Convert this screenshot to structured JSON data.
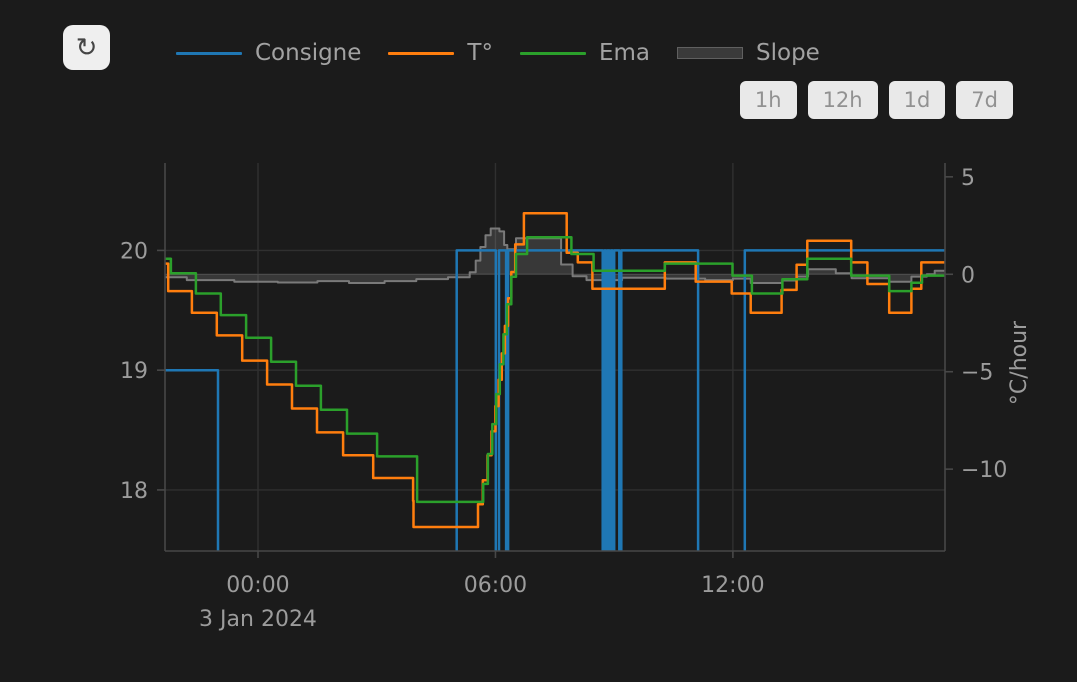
{
  "header": {
    "refresh_icon": "↻"
  },
  "legend": {
    "items": [
      {
        "label": "Consigne",
        "color": "#1f77b4",
        "swatch": "line"
      },
      {
        "label": "T°",
        "color": "#ff7e0e",
        "swatch": "line"
      },
      {
        "label": "Ema",
        "color": "#2ba02b",
        "swatch": "line"
      },
      {
        "label": "Slope",
        "color": "#3a3a3a",
        "border": "#606060",
        "swatch": "fill"
      }
    ]
  },
  "range_buttons": [
    {
      "label": "1h"
    },
    {
      "label": "12h"
    },
    {
      "label": "1d"
    },
    {
      "label": "7d"
    }
  ],
  "chart_data": {
    "type": "line",
    "title": "",
    "grid": true,
    "legend_position": "top",
    "x_axis": {
      "date_label": "3 Jan 2024",
      "range_hours": [
        -2.35,
        17.36
      ],
      "ticks": [
        {
          "t": 0,
          "label": "00:00"
        },
        {
          "t": 6,
          "label": "06:00"
        },
        {
          "t": 12,
          "label": "12:00"
        }
      ]
    },
    "y_axis_left": {
      "title": "",
      "ticks": [
        20,
        19,
        18
      ],
      "range": [
        17.49,
        20.73
      ]
    },
    "y_axis_right": {
      "title": "°C/hour",
      "ticks": [
        5,
        0,
        -5,
        -10
      ],
      "range": [
        -14.2,
        5.71
      ],
      "zeroline": 0
    },
    "series": [
      {
        "name": "Consigne",
        "color": "#1f77b4",
        "yaxis": "left",
        "line_shape": "step",
        "width": 2.5,
        "t_end": 17.36,
        "points": [
          [
            -2.35,
            19.0
          ],
          [
            -1.01,
            17.2
          ],
          [
            5.02,
            20.0
          ],
          [
            6.01,
            17.2
          ],
          [
            6.09,
            20.0
          ],
          [
            6.27,
            17.2
          ],
          [
            6.32,
            20.0
          ],
          [
            8.71,
            17.2
          ],
          [
            8.75,
            20.0
          ],
          [
            8.79,
            17.2
          ],
          [
            8.83,
            20.0
          ],
          [
            8.88,
            17.2
          ],
          [
            8.92,
            20.0
          ],
          [
            8.96,
            17.2
          ],
          [
            9.0,
            20.0
          ],
          [
            9.13,
            17.2
          ],
          [
            9.18,
            20.0
          ],
          [
            11.12,
            17.2
          ],
          [
            12.3,
            20.0
          ]
        ]
      },
      {
        "name": "T°",
        "color": "#ff7e0e",
        "yaxis": "left",
        "line_shape": "step",
        "width": 2.5,
        "t_end": 17.36,
        "points": [
          [
            -2.35,
            19.89
          ],
          [
            -2.27,
            19.66
          ],
          [
            -1.67,
            19.48
          ],
          [
            -1.04,
            19.29
          ],
          [
            -0.4,
            19.08
          ],
          [
            0.23,
            18.88
          ],
          [
            0.86,
            18.68
          ],
          [
            1.49,
            18.48
          ],
          [
            2.15,
            18.29
          ],
          [
            2.91,
            18.1
          ],
          [
            3.92,
            17.91
          ],
          [
            3.93,
            17.69
          ],
          [
            5.56,
            17.88
          ],
          [
            5.68,
            18.08
          ],
          [
            5.8,
            18.29
          ],
          [
            5.9,
            18.49
          ],
          [
            6.0,
            18.7
          ],
          [
            6.08,
            18.92
          ],
          [
            6.16,
            19.14
          ],
          [
            6.24,
            19.37
          ],
          [
            6.32,
            19.6
          ],
          [
            6.4,
            19.82
          ],
          [
            6.5,
            20.05
          ],
          [
            6.72,
            20.31
          ],
          [
            7.8,
            19.98
          ],
          [
            8.08,
            19.9
          ],
          [
            8.45,
            19.68
          ],
          [
            10.28,
            19.9
          ],
          [
            11.06,
            19.74
          ],
          [
            11.97,
            19.64
          ],
          [
            12.45,
            19.48
          ],
          [
            13.23,
            19.67
          ],
          [
            13.61,
            19.88
          ],
          [
            13.88,
            20.08
          ],
          [
            14.99,
            19.9
          ],
          [
            15.4,
            19.72
          ],
          [
            15.95,
            19.48
          ],
          [
            16.51,
            19.68
          ],
          [
            16.76,
            19.9
          ]
        ]
      },
      {
        "name": "Ema",
        "color": "#2ba02b",
        "yaxis": "left",
        "line_shape": "step",
        "width": 2.5,
        "t_end": 17.36,
        "points": [
          [
            -2.35,
            19.93
          ],
          [
            -2.2,
            19.81
          ],
          [
            -1.57,
            19.64
          ],
          [
            -0.94,
            19.46
          ],
          [
            -0.3,
            19.27
          ],
          [
            0.33,
            19.07
          ],
          [
            0.96,
            18.87
          ],
          [
            1.59,
            18.67
          ],
          [
            2.25,
            18.47
          ],
          [
            3.01,
            18.28
          ],
          [
            4.02,
            17.9
          ],
          [
            5.69,
            18.05
          ],
          [
            5.81,
            18.3
          ],
          [
            5.92,
            18.55
          ],
          [
            6.02,
            18.8
          ],
          [
            6.11,
            19.05
          ],
          [
            6.2,
            19.3
          ],
          [
            6.29,
            19.55
          ],
          [
            6.4,
            19.78
          ],
          [
            6.52,
            19.97
          ],
          [
            6.8,
            20.11
          ],
          [
            7.92,
            19.97
          ],
          [
            8.48,
            19.83
          ],
          [
            10.28,
            19.89
          ],
          [
            11.99,
            19.79
          ],
          [
            12.48,
            19.64
          ],
          [
            13.25,
            19.76
          ],
          [
            13.88,
            19.93
          ],
          [
            14.99,
            19.79
          ],
          [
            15.95,
            19.66
          ],
          [
            16.51,
            19.73
          ],
          [
            16.78,
            19.79
          ]
        ]
      },
      {
        "name": "Slope",
        "color": "#7a7a7a",
        "yaxis": "right",
        "line_shape": "step",
        "width": 2,
        "fill_to_zero": true,
        "fill": "rgba(255,255,255,0.13)",
        "t_end": 17.36,
        "points": [
          [
            -2.35,
            -0.15
          ],
          [
            -1.8,
            -0.3
          ],
          [
            -0.6,
            -0.38
          ],
          [
            0.5,
            -0.42
          ],
          [
            1.5,
            -0.35
          ],
          [
            2.3,
            -0.45
          ],
          [
            3.2,
            -0.35
          ],
          [
            4.0,
            -0.25
          ],
          [
            4.8,
            -0.15
          ],
          [
            5.35,
            0.1
          ],
          [
            5.5,
            0.7
          ],
          [
            5.62,
            1.4
          ],
          [
            5.75,
            2.0
          ],
          [
            5.88,
            2.35
          ],
          [
            6.1,
            2.2
          ],
          [
            6.22,
            1.5
          ],
          [
            6.3,
            1.28
          ],
          [
            6.52,
            1.85
          ],
          [
            7.66,
            0.5
          ],
          [
            7.95,
            -0.1
          ],
          [
            8.3,
            -0.3
          ],
          [
            9.2,
            -0.18
          ],
          [
            10.3,
            -0.22
          ],
          [
            11.3,
            -0.3
          ],
          [
            12.0,
            -0.22
          ],
          [
            12.45,
            -0.45
          ],
          [
            13.25,
            -0.32
          ],
          [
            13.62,
            -0.12
          ],
          [
            13.9,
            0.26
          ],
          [
            14.6,
            0.05
          ],
          [
            15.0,
            -0.2
          ],
          [
            15.95,
            -0.38
          ],
          [
            16.51,
            -0.12
          ],
          [
            16.9,
            0.0
          ],
          [
            17.1,
            0.18
          ]
        ]
      }
    ]
  },
  "colors": {
    "background": "#1b1b1b",
    "grid": "#303030",
    "zeroline": "#3a3a3a",
    "axis_line": "#484848",
    "tick_text": "#9c9c9c",
    "button_bg": "#e9e9e9",
    "button_text": "#919191"
  }
}
